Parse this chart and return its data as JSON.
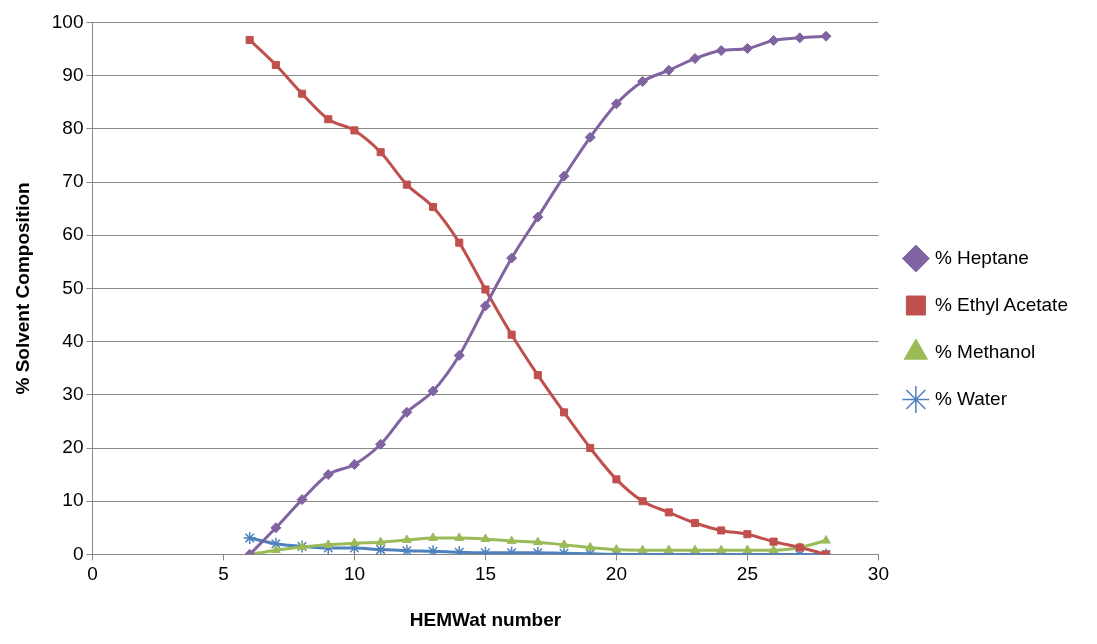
{
  "chart_data": {
    "type": "line",
    "xlabel": "HEMWat number",
    "ylabel": "% Solvent Composition",
    "x": [
      6,
      7,
      8,
      9,
      10,
      11,
      12,
      13,
      14,
      15,
      16,
      17,
      18,
      19,
      20,
      21,
      22,
      23,
      24,
      25,
      26,
      27,
      28
    ],
    "xlim": [
      0,
      30
    ],
    "xticks": [
      0,
      5,
      10,
      15,
      20,
      25,
      30
    ],
    "ylim": [
      0,
      100
    ],
    "yticks": [
      0,
      10,
      20,
      30,
      40,
      50,
      60,
      70,
      80,
      90,
      100
    ],
    "grid": "y",
    "legend": "right",
    "line_style": "solid",
    "series": [
      {
        "name": "% Heptane",
        "color": "#8064a2",
        "marker": "diamond",
        "values": [
          0,
          5,
          10.3,
          15,
          16.9,
          20.7,
          26.7,
          30.7,
          37.4,
          46.7,
          55.7,
          63.4,
          71.1,
          78.4,
          84.7,
          88.9,
          91,
          93.2,
          94.7,
          95.1,
          96.6,
          97.1,
          97.4
        ]
      },
      {
        "name": "% Ethyl Acetate",
        "color": "#c0504d",
        "marker": "square",
        "values": [
          96.7,
          92,
          86.6,
          81.8,
          79.7,
          75.6,
          69.5,
          65.3,
          58.6,
          49.8,
          41.3,
          33.7,
          26.7,
          20,
          14.1,
          10,
          7.9,
          5.9,
          4.5,
          3.8,
          2.4,
          1.3,
          0
        ]
      },
      {
        "name": "% Methanol",
        "color": "#9bbb59",
        "marker": "triangle",
        "values": [
          0,
          0.8,
          1.4,
          1.8,
          2.1,
          2.3,
          2.7,
          3.1,
          3.1,
          2.9,
          2.5,
          2.3,
          1.8,
          1.3,
          0.9,
          0.8,
          0.8,
          0.8,
          0.8,
          0.8,
          0.8,
          1.3,
          2.6
        ]
      },
      {
        "name": "% Water",
        "color": "#4f81bd",
        "marker": "cross",
        "values": [
          3.1,
          2,
          1.5,
          1.2,
          1.2,
          0.9,
          0.7,
          0.6,
          0.4,
          0.3,
          0.3,
          0.3,
          0.2,
          0.1,
          0,
          0,
          0,
          0,
          0,
          0,
          0,
          0,
          0
        ]
      }
    ]
  }
}
